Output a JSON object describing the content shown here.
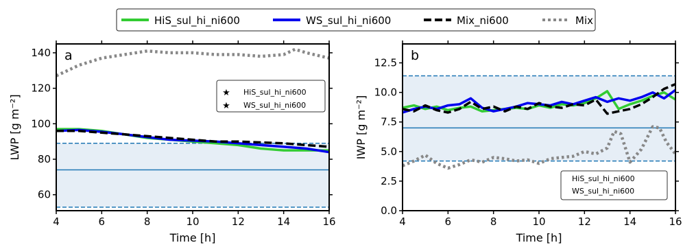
{
  "figure_legend": [
    {
      "label": "HiS_sul_hi_ni600",
      "color": "#33cc33",
      "style": "solid"
    },
    {
      "label": "WS_sul_hi_ni600",
      "color": "#0000ee",
      "style": "solid"
    },
    {
      "label": "Mix_ni600",
      "color": "#000000",
      "style": "dashed"
    },
    {
      "label": "Mix",
      "color": "#888888",
      "style": "dotted"
    }
  ],
  "colors": {
    "band_fill": "#e6eef6",
    "band_line": "#1f77b4"
  },
  "chart_data": [
    {
      "type": "line",
      "panel_label": "a",
      "xlabel": "Time [h]",
      "ylabel": "LWP [g m⁻²]",
      "xlim": [
        4,
        16
      ],
      "ylim": [
        51,
        145
      ],
      "xticks": [
        4,
        6,
        8,
        10,
        12,
        14,
        16
      ],
      "yticks": [
        60,
        80,
        100,
        120,
        140
      ],
      "band": {
        "low": 53,
        "mid": 74,
        "high": 89
      },
      "star_legend": [
        "HiS_sul_hi_ni600",
        "WS_sul_hi_ni600"
      ],
      "series": [
        {
          "name": "HiS_sul_hi_ni600",
          "color": "#33cc33",
          "style": "solid",
          "x": [
            4,
            5,
            6,
            7,
            8,
            9,
            10,
            11,
            12,
            13,
            14,
            15,
            16
          ],
          "y": [
            97,
            97,
            96,
            94,
            92,
            91,
            90,
            89,
            88,
            86,
            85,
            85,
            85
          ]
        },
        {
          "name": "WS_sul_hi_ni600",
          "color": "#0000ee",
          "style": "solid",
          "x": [
            4,
            5,
            6,
            7,
            8,
            9,
            10,
            11,
            12,
            13,
            14,
            15,
            16
          ],
          "y": [
            96,
            96.5,
            95.5,
            94,
            92.5,
            91,
            90.5,
            90,
            89,
            88,
            87,
            86,
            84
          ]
        },
        {
          "name": "Mix_ni600",
          "color": "#000000",
          "style": "dashed",
          "x": [
            4,
            5,
            6,
            7,
            8,
            9,
            10,
            11,
            12,
            13,
            14,
            15,
            16
          ],
          "y": [
            96,
            96,
            95,
            94,
            93,
            92,
            91,
            90,
            90,
            89.5,
            89,
            88,
            87
          ]
        },
        {
          "name": "Mix",
          "color": "#888888",
          "style": "dotted",
          "x": [
            4,
            5,
            6,
            7,
            8,
            9,
            10,
            11,
            12,
            13,
            14,
            14.5,
            15,
            16
          ],
          "y": [
            127,
            133,
            137,
            139,
            141,
            140,
            140,
            139,
            139,
            138,
            139,
            142,
            140,
            137
          ]
        }
      ]
    },
    {
      "type": "line",
      "panel_label": "b",
      "xlabel": "Time [h]",
      "ylabel": "IWP [g m⁻²]",
      "xlim": [
        4,
        16
      ],
      "ylim": [
        0,
        14.1
      ],
      "xticks": [
        4,
        6,
        8,
        10,
        12,
        14,
        16
      ],
      "yticks": [
        0.0,
        2.5,
        5.0,
        7.5,
        10.0,
        12.5
      ],
      "band": {
        "low": 4.2,
        "mid": 7.0,
        "high": 11.4
      },
      "box_legend": [
        "HiS_sul_hi_ni600",
        "WS_sul_hi_ni600"
      ],
      "series": [
        {
          "name": "HiS_sul_hi_ni600",
          "color": "#33cc33",
          "style": "solid",
          "x": [
            4,
            4.5,
            5,
            5.5,
            6,
            6.5,
            7,
            7.5,
            8,
            8.5,
            9,
            9.5,
            10,
            10.5,
            11,
            11.5,
            12,
            12.5,
            13,
            13.5,
            14,
            14.5,
            15,
            15.5,
            16
          ],
          "y": [
            8.7,
            8.9,
            8.6,
            8.8,
            8.5,
            8.7,
            8.8,
            8.4,
            8.5,
            8.6,
            8.7,
            8.6,
            8.9,
            8.7,
            9.0,
            8.9,
            9.1,
            9.5,
            10.1,
            8.6,
            9.0,
            9.3,
            9.7,
            10.0,
            9.4
          ]
        },
        {
          "name": "WS_sul_hi_ni600",
          "color": "#0000ee",
          "style": "solid",
          "x": [
            4,
            4.5,
            5,
            5.5,
            6,
            6.5,
            7,
            7.5,
            8,
            8.5,
            9,
            9.5,
            10,
            10.5,
            11,
            11.5,
            12,
            12.5,
            13,
            13.5,
            14,
            14.5,
            15,
            15.5,
            16
          ],
          "y": [
            8.3,
            8.6,
            8.8,
            8.6,
            8.9,
            9.0,
            9.5,
            8.7,
            8.4,
            8.6,
            8.8,
            9.1,
            9.0,
            8.9,
            9.2,
            9.0,
            9.3,
            9.6,
            9.2,
            9.5,
            9.3,
            9.6,
            10.0,
            9.5,
            10.2
          ]
        },
        {
          "name": "Mix_ni600",
          "color": "#000000",
          "style": "dashed",
          "x": [
            4,
            4.5,
            5,
            5.5,
            6,
            6.5,
            7,
            7.5,
            8,
            8.5,
            9,
            9.5,
            10,
            10.5,
            11,
            11.5,
            12,
            12.5,
            13,
            13.5,
            14,
            14.5,
            15,
            15.5,
            16
          ],
          "y": [
            8.6,
            8.4,
            8.9,
            8.5,
            8.3,
            8.6,
            9.2,
            8.6,
            8.8,
            8.4,
            8.8,
            8.6,
            9.1,
            8.8,
            8.7,
            9.0,
            8.9,
            9.4,
            8.2,
            8.4,
            8.6,
            9.0,
            9.6,
            10.3,
            10.7
          ]
        },
        {
          "name": "Mix",
          "color": "#888888",
          "style": "dotted",
          "x": [
            4,
            4.5,
            5,
            5.5,
            6,
            6.5,
            7,
            7.5,
            8,
            8.5,
            9,
            9.5,
            10,
            10.5,
            11,
            11.5,
            12,
            12.5,
            13,
            13.3,
            13.6,
            14,
            14.5,
            15,
            15.3,
            15.6,
            16
          ],
          "y": [
            3.8,
            4.2,
            4.7,
            4.0,
            3.6,
            3.9,
            4.3,
            4.1,
            4.5,
            4.4,
            4.2,
            4.3,
            4.0,
            4.4,
            4.5,
            4.6,
            5.0,
            4.8,
            5.3,
            6.7,
            6.5,
            4.1,
            5.2,
            7.1,
            7.0,
            5.8,
            4.8
          ]
        }
      ]
    }
  ]
}
